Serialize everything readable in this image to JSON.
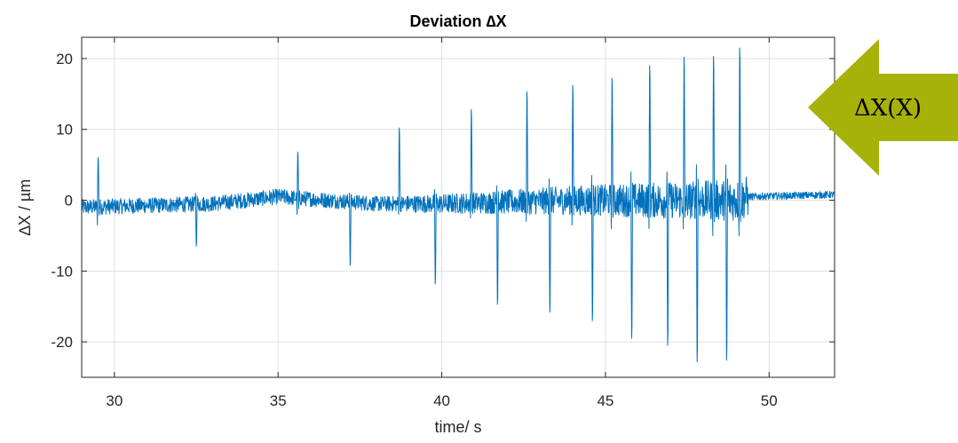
{
  "chart_data": {
    "type": "line",
    "title": "Deviation ∆X",
    "xlabel": "time/ s",
    "ylabel": "∆X / µm",
    "xlim": [
      29,
      52
    ],
    "ylim": [
      -25,
      23
    ],
    "xticks": [
      30,
      35,
      40,
      45,
      50
    ],
    "yticks": [
      -20,
      -10,
      0,
      10,
      20
    ],
    "grid": true,
    "series": [
      {
        "color": "#0072bd",
        "baseline": [
          [
            29.0,
            -1.0
          ],
          [
            33.0,
            -0.5
          ],
          [
            35.0,
            0.5
          ],
          [
            38.0,
            -0.5
          ],
          [
            40.0,
            -0.5
          ],
          [
            44.0,
            0.0
          ],
          [
            49.0,
            0.0
          ],
          [
            49.4,
            0.5
          ],
          [
            52.0,
            0.8
          ]
        ],
        "spikes": [
          {
            "t": 29.5,
            "up": 6.0,
            "down": -3.5
          },
          {
            "t": 32.5,
            "up": 1.0,
            "down": -6.5
          },
          {
            "t": 35.6,
            "up": 6.8,
            "down": -2.0
          },
          {
            "t": 37.2,
            "up": 1.0,
            "down": -9.2
          },
          {
            "t": 38.7,
            "up": 10.2,
            "down": -2.0
          },
          {
            "t": 39.8,
            "up": 1.5,
            "down": -11.8
          },
          {
            "t": 40.9,
            "up": 12.8,
            "down": -2.5
          },
          {
            "t": 41.7,
            "up": 2.0,
            "down": -14.7
          },
          {
            "t": 42.6,
            "up": 15.3,
            "down": -3.0
          },
          {
            "t": 43.3,
            "up": 3.0,
            "down": -15.8
          },
          {
            "t": 44.0,
            "up": 16.2,
            "down": -3.5
          },
          {
            "t": 44.6,
            "up": 3.5,
            "down": -17.0
          },
          {
            "t": 45.2,
            "up": 17.2,
            "down": -4.0
          },
          {
            "t": 45.8,
            "up": 4.0,
            "down": -19.5
          },
          {
            "t": 46.35,
            "up": 19.0,
            "down": -4.0
          },
          {
            "t": 46.9,
            "up": 4.0,
            "down": -20.5
          },
          {
            "t": 47.4,
            "up": 20.2,
            "down": -4.0
          },
          {
            "t": 47.8,
            "up": 5.0,
            "down": -22.8
          },
          {
            "t": 48.3,
            "up": 20.3,
            "down": -5.0
          },
          {
            "t": 48.7,
            "up": 5.0,
            "down": -22.6
          },
          {
            "t": 49.1,
            "up": 21.5,
            "down": -5.0
          }
        ]
      }
    ],
    "annotation": {
      "label": "ΔX(X)",
      "shape": "arrow-left",
      "color": "#a7b208"
    }
  }
}
